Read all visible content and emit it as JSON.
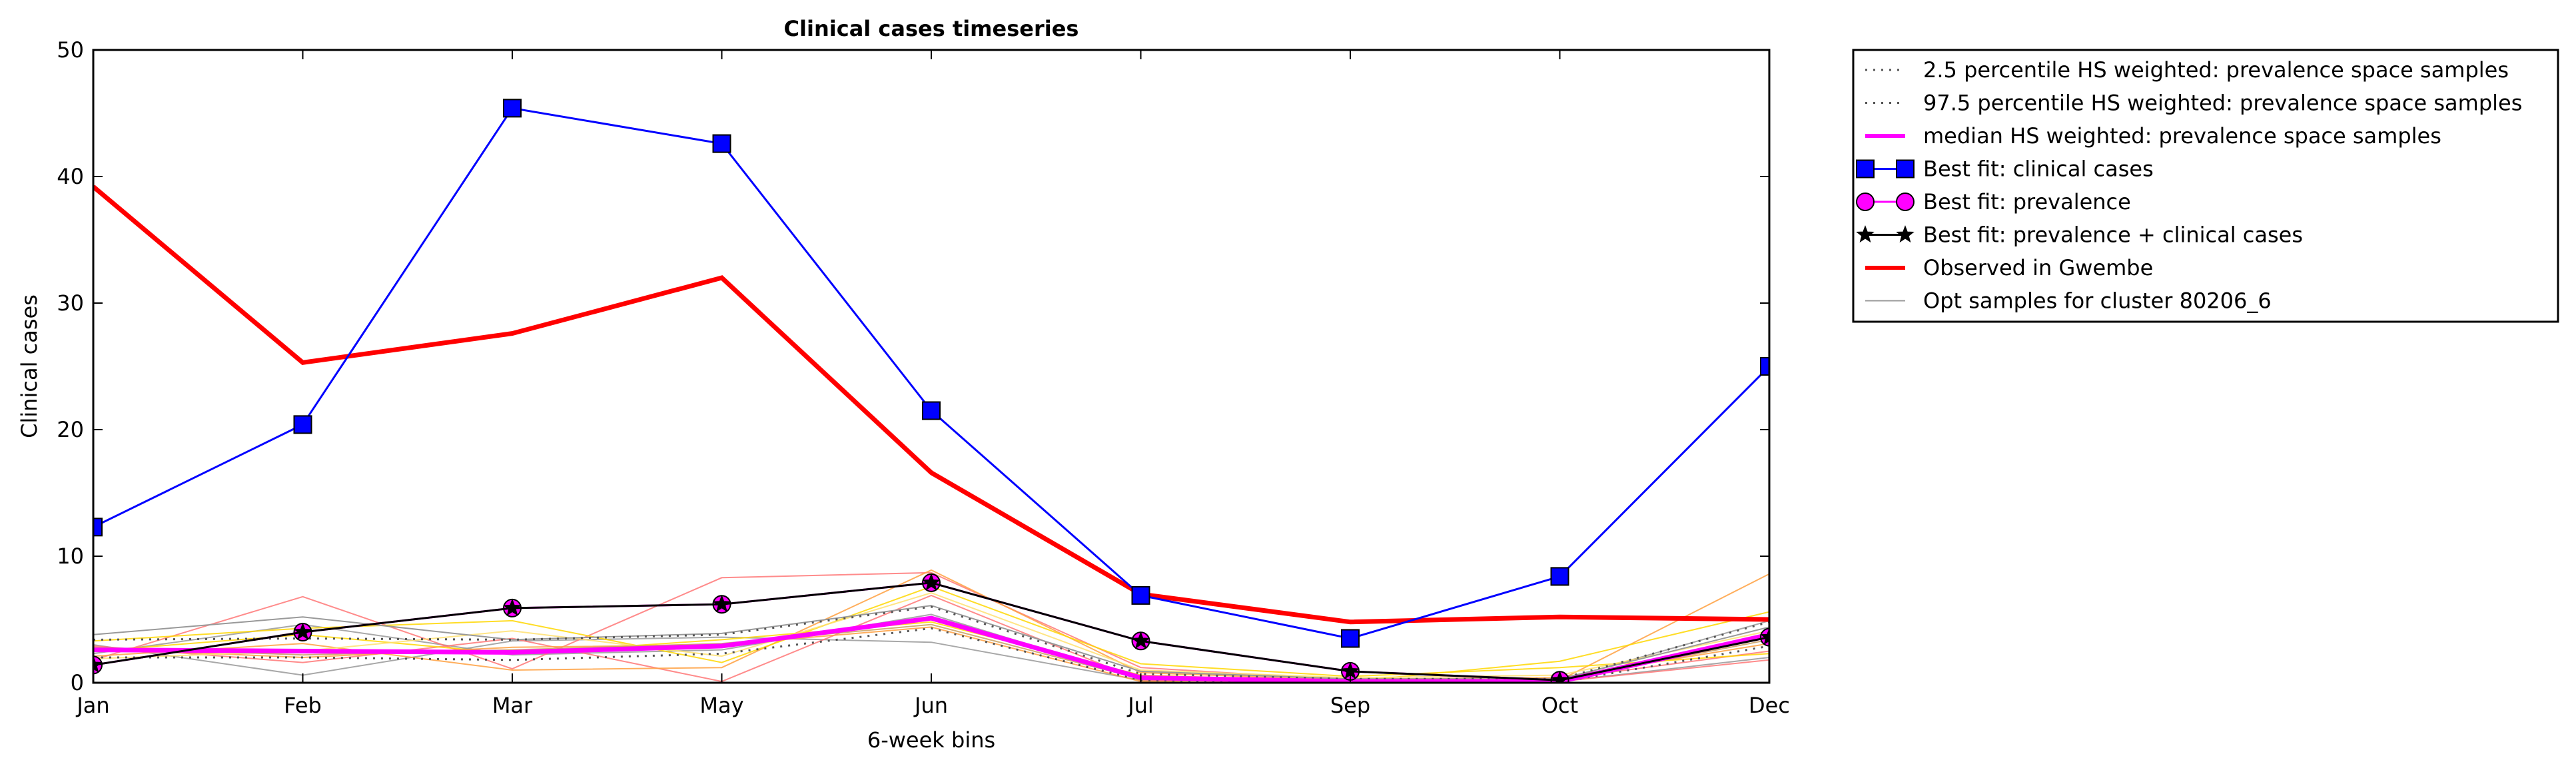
{
  "chart_data": {
    "type": "line",
    "title": "Clinical cases timeseries",
    "xlabel": "6-week bins",
    "ylabel": "Clinical cases",
    "categories": [
      "Jan",
      "Feb",
      "Mar",
      "May",
      "Jun",
      "Jul",
      "Sep",
      "Oct",
      "Dec"
    ],
    "ylim": [
      0,
      50
    ],
    "yticks": [
      0,
      10,
      20,
      30,
      40,
      50
    ],
    "grid": false,
    "legend_placement": "outside-top-right",
    "series": [
      {
        "name": "2.5 percentile HS weighted: prevalence space samples",
        "style": "dotted",
        "color": "#555555",
        "values": [
          2.0,
          2.0,
          1.8,
          2.3,
          4.3,
          0.2,
          0.05,
          0.05,
          2.9
        ]
      },
      {
        "name": "97.5 percentile HS weighted: prevalence space samples",
        "style": "dotted",
        "color": "#555555",
        "values": [
          3.4,
          3.5,
          3.4,
          3.8,
          6.0,
          0.7,
          0.3,
          0.3,
          4.8
        ]
      },
      {
        "name": "median HS weighted: prevalence space samples",
        "style": "solid",
        "color": "#ff00ff",
        "values": [
          2.6,
          2.5,
          2.4,
          2.9,
          5.1,
          0.4,
          0.1,
          0.1,
          3.8
        ]
      },
      {
        "name": "Best fit: clinical cases",
        "style": "solid",
        "marker": "square",
        "color": "#0000ff",
        "values": [
          12.3,
          20.4,
          45.4,
          42.6,
          21.5,
          6.9,
          3.5,
          8.4,
          25.0
        ]
      },
      {
        "name": "Best fit: prevalence",
        "style": "solid",
        "marker": "circle",
        "color": "#ff00ff",
        "values": [
          1.4,
          4.0,
          5.9,
          6.2,
          7.9,
          3.3,
          0.9,
          0.2,
          3.6
        ]
      },
      {
        "name": "Best fit: prevalence + clinical cases",
        "style": "solid",
        "marker": "star",
        "color": "#000000",
        "values": [
          1.4,
          4.0,
          5.9,
          6.2,
          7.9,
          3.3,
          0.9,
          0.2,
          3.6
        ]
      },
      {
        "name": "Observed in Gwembe",
        "style": "solid",
        "color": "#ff0000",
        "values": [
          39.2,
          25.3,
          27.6,
          32.0,
          16.6,
          7.0,
          4.8,
          5.2,
          5.0
        ]
      },
      {
        "name": "Opt samples for cluster 80206_6",
        "style": "solid",
        "color": "#999999",
        "values": [
          3.8,
          5.2,
          3.4,
          3.9,
          6.1,
          0.9,
          0.3,
          0.3,
          4.4
        ]
      }
    ],
    "sample_lines": [
      {
        "color": "#999999",
        "values": [
          3.0,
          0.6,
          3.3,
          3.6,
          3.2,
          0.2,
          0.1,
          0.1,
          2.0
        ]
      },
      {
        "color": "#999999",
        "values": [
          2.3,
          4.6,
          2.2,
          2.6,
          5.4,
          0.3,
          0.0,
          0.2,
          4.9
        ]
      },
      {
        "color": "#ff7777",
        "values": [
          1.8,
          6.8,
          1.1,
          8.3,
          8.7,
          1.2,
          0.2,
          0.3,
          2.5
        ]
      },
      {
        "color": "#ff7777",
        "values": [
          2.9,
          1.6,
          3.5,
          0.1,
          6.9,
          0.2,
          0.0,
          0.1,
          1.8
        ]
      },
      {
        "color": "#ffa040",
        "values": [
          2.1,
          3.1,
          1.0,
          1.2,
          8.9,
          0.8,
          0.2,
          0.2,
          8.6
        ]
      },
      {
        "color": "#ffa040",
        "values": [
          2.7,
          2.0,
          2.8,
          3.0,
          4.4,
          0.1,
          0.3,
          0.4,
          3.1
        ]
      },
      {
        "color": "#ffd700",
        "values": [
          3.3,
          4.3,
          4.9,
          1.6,
          7.6,
          1.5,
          0.5,
          1.2,
          2.3
        ]
      },
      {
        "color": "#ffd700",
        "values": [
          2.5,
          3.8,
          2.3,
          3.4,
          4.8,
          0.6,
          0.1,
          1.7,
          5.6
        ]
      },
      {
        "color": "#ffe070",
        "values": [
          1.9,
          2.5,
          4.1,
          2.1,
          7.1,
          1.0,
          0.4,
          0.6,
          4.1
        ]
      },
      {
        "color": "#c8a060",
        "values": [
          2.8,
          2.2,
          2.6,
          3.1,
          4.6,
          0.3,
          0.1,
          0.2,
          3.4
        ]
      }
    ]
  }
}
